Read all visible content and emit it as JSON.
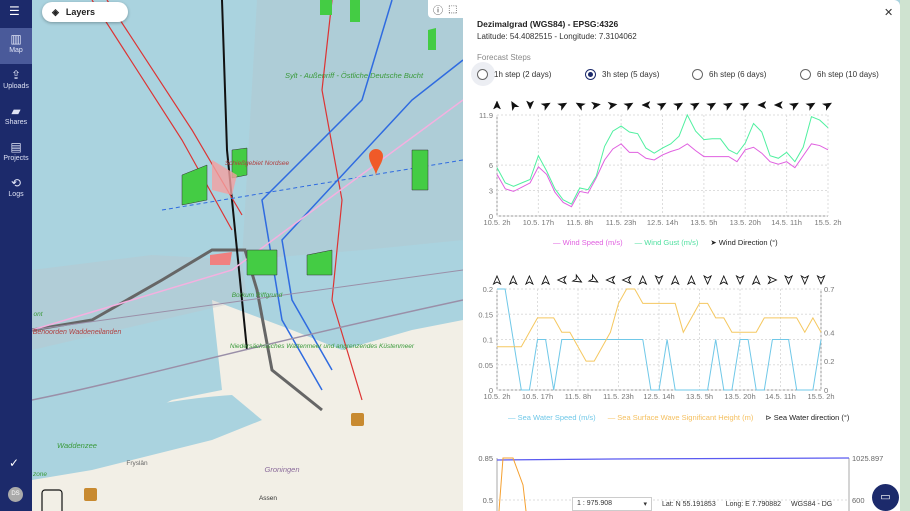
{
  "sidebar": {
    "items": [
      {
        "label": "Map",
        "icon": "map-icon"
      },
      {
        "label": "Uploads",
        "icon": "upload-icon"
      },
      {
        "label": "Shares",
        "icon": "folder-shared-icon"
      },
      {
        "label": "Projects",
        "icon": "projects-icon"
      },
      {
        "label": "Logs",
        "icon": "history-icon"
      }
    ],
    "user_initials": "DS"
  },
  "map": {
    "layers_label": "Layers",
    "labels": [
      "Sylt - Außenriff - Östliche Deutsche Bucht",
      "Schießgebiet Nordsee",
      "Borkum Riffgrund",
      "Benoorden Waddeneilanden",
      "Niedersächsisches Wattenmeer und angrenzendes Küstenmeer",
      "Waddenzee",
      "Groningen",
      "Assen",
      "Fryslân",
      "zone",
      "ont"
    ],
    "marker_color": "#f05a28"
  },
  "panel": {
    "title": "Dezimalgrad (WGS84) - EPSG:4326",
    "coords": "Latitude: 54.4082515 - Longitude: 7.3104062",
    "steps_label": "Forecast Steps",
    "steps": [
      {
        "label": "1h step (2 days)",
        "selected": false
      },
      {
        "label": "3h step (5 days)",
        "selected": true
      },
      {
        "label": "6h step (6 days)",
        "selected": false
      },
      {
        "label": "6h step (10 days)",
        "selected": false
      }
    ]
  },
  "status": {
    "scale": "1 : 975.908",
    "lat": "Lat: N 55.191853",
    "long": "Long: E 7.790882",
    "crs": "WGS84 - DG"
  },
  "chart_data": [
    {
      "type": "line",
      "xticks": [
        "10.5. 2h",
        "10.5. 17h",
        "11.5. 8h",
        "11.5. 23h",
        "12.5. 14h",
        "13.5. 5h",
        "13.5. 20h",
        "14.5. 11h",
        "15.5. 2h"
      ],
      "ylim": [
        0,
        11.9
      ],
      "yticks": [
        "0",
        "3",
        "6",
        "11.9"
      ],
      "grid": true,
      "legend": "bottom",
      "series": [
        {
          "name": "Wind Speed (m/s)",
          "color": "#e060e0",
          "values": [
            4.9,
            3.2,
            2.9,
            3.4,
            3.9,
            5.8,
            4.9,
            2.8,
            1.6,
            1.1,
            2.9,
            2.7,
            4.5,
            6.6,
            7.9,
            8.5,
            7.5,
            7.5,
            6.8,
            6.6,
            7.2,
            7.6,
            7.9,
            8.5,
            7.7,
            7.0,
            7.0,
            7.0,
            7.0,
            6.4,
            7.8,
            8.1,
            7.4,
            6.4,
            6.1,
            6.4,
            5.7,
            7.1,
            8.5,
            8.3,
            7.8
          ]
        },
        {
          "name": "Wind Gust (m/s)",
          "color": "#50f0a0",
          "values": [
            5.7,
            3.9,
            3.5,
            3.9,
            4.3,
            7.1,
            5.3,
            3.2,
            1.9,
            1.4,
            3.3,
            3.1,
            4.7,
            8.2,
            10.0,
            10.6,
            9.9,
            9.7,
            8.0,
            7.4,
            8.0,
            8.5,
            9.4,
            11.9,
            10.0,
            9.0,
            9.1,
            9.1,
            7.8,
            7.3,
            8.6,
            10.9,
            9.9,
            7.1,
            6.8,
            7.5,
            6.4,
            8.1,
            11.7,
            11.3,
            10.4
          ]
        }
      ],
      "arrows": {
        "name": "Wind Direction (°)",
        "degrees": [
          0,
          330,
          180,
          60,
          60,
          300,
          80,
          80,
          60,
          270,
          60,
          60,
          60,
          60,
          60,
          60,
          270,
          270,
          60,
          60,
          60
        ]
      }
    },
    {
      "type": "line",
      "xticks": [
        "10.5. 2h",
        "10.5. 17h",
        "11.5. 8h",
        "11.5. 23h",
        "12.5. 14h",
        "13.5. 5h",
        "13.5. 20h",
        "14.5. 11h",
        "15.5. 2h"
      ],
      "ylim": [
        0,
        0.2
      ],
      "yticks": [
        "0",
        "0.05",
        "0.1",
        "0.15",
        "0.2"
      ],
      "y2lim": [
        0,
        0.7
      ],
      "y2ticks": [
        "0",
        "0.2",
        "0.4",
        "0.7"
      ],
      "grid": true,
      "legend": "bottom",
      "series": [
        {
          "name": "Sea Water Speed (m/s)",
          "color": "#70c8e8",
          "axis": "left",
          "values": [
            0.2,
            0.2,
            0.1,
            0,
            0,
            0.1,
            0.1,
            0,
            0.1,
            0.1,
            0.1,
            0.1,
            0.1,
            0.1,
            0.1,
            0.1,
            0.1,
            0.1,
            0.1,
            0,
            0,
            0.1,
            0,
            0,
            0,
            0,
            0,
            0.1,
            0,
            0,
            0.1,
            0.1,
            0,
            0,
            0.1,
            0.1,
            0.1,
            0,
            0,
            0,
            0.1
          ]
        },
        {
          "name": "Sea Surface Wave Significant Height (m)",
          "color": "#f5c860",
          "axis": "right",
          "values": [
            0.3,
            0.3,
            0.3,
            0.3,
            0.4,
            0.5,
            0.5,
            0.5,
            0.4,
            0.4,
            0.3,
            0.2,
            0.2,
            0.3,
            0.4,
            0.6,
            0.7,
            0.7,
            0.6,
            0.6,
            0.6,
            0.6,
            0.6,
            0.4,
            0.5,
            0.6,
            0.6,
            0.5,
            0.5,
            0.4,
            0.4,
            0.4,
            0.4,
            0.5,
            0.5,
            0.5,
            0.5,
            0.5,
            0.4,
            0.5,
            0.4
          ]
        }
      ],
      "arrows": {
        "name": "Sea Water direction (°)",
        "degrees": [
          0,
          0,
          0,
          0,
          270,
          120,
          120,
          270,
          270,
          0,
          180,
          0,
          0,
          180,
          0,
          180,
          0,
          90,
          180,
          180,
          180
        ]
      }
    },
    {
      "type": "line",
      "yticks": [
        "0.85",
        "0.5"
      ],
      "y2ticks": [
        "1025.897",
        "600"
      ]
    }
  ]
}
